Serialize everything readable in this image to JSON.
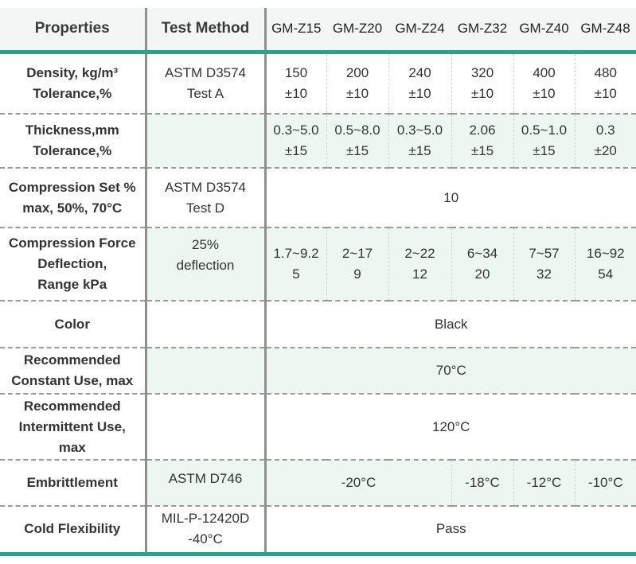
{
  "header": {
    "properties": "Properties",
    "method": "Test Method",
    "models": [
      "GM-Z15",
      "GM-Z20",
      "GM-Z24",
      "GM-Z32",
      "GM-Z40",
      "GM-Z48"
    ]
  },
  "rows": {
    "density": {
      "label_line1": "Density, kg/m³",
      "label_line2": "Tolerance,%",
      "method_line1": "ASTM D3574",
      "method_line2": "Test A",
      "values": [
        {
          "a": "150",
          "b": "±10"
        },
        {
          "a": "200",
          "b": "±10"
        },
        {
          "a": "240",
          "b": "±10"
        },
        {
          "a": "320",
          "b": "±10"
        },
        {
          "a": "400",
          "b": "±10"
        },
        {
          "a": "480",
          "b": "±10"
        }
      ]
    },
    "thickness": {
      "label_line1": "Thickness,mm",
      "label_line2": "Tolerance,%",
      "values": [
        {
          "a": "0.3~5.0",
          "b": "±15"
        },
        {
          "a": "0.5~8.0",
          "b": "±15"
        },
        {
          "a": "0.3~5.0",
          "b": "±15"
        },
        {
          "a": "2.06",
          "b": "±15"
        },
        {
          "a": "0.5~1.0",
          "b": "±15"
        },
        {
          "a": "0.3",
          "b": "±20"
        }
      ]
    },
    "compression_set": {
      "label_line1": "Compression Set %",
      "label_line2": "max,  50%, 70°C",
      "method_line1": "ASTM D3574",
      "method_line2": "Test D",
      "value": "10"
    },
    "cfd": {
      "label_line1": "Compression Force",
      "label_line2": "Deflection,",
      "label_line3": "Range kPa",
      "method_line1": "25%",
      "method_line2": "deflection",
      "values": [
        {
          "a": "1.7~9.2",
          "b": "5"
        },
        {
          "a": "2~17",
          "b": "9"
        },
        {
          "a": "2~22",
          "b": "12"
        },
        {
          "a": "6~34",
          "b": "20"
        },
        {
          "a": "7~57",
          "b": "32"
        },
        {
          "a": "16~92",
          "b": "54"
        }
      ]
    },
    "color": {
      "label": "Color",
      "value": "Black"
    },
    "constant_use": {
      "label_line1": "Recommended",
      "label_line2": "Constant Use, max",
      "value": "70°C"
    },
    "intermittent_use": {
      "label_line1": "Recommended",
      "label_line2": "Intermittent Use,",
      "label_line3": "max",
      "value": "120°C"
    },
    "embrittlement": {
      "label": "Embrittlement",
      "method": "ASTM D746",
      "value_z15_z24": "-20°C",
      "value_z32": "-18°C",
      "value_z40": "-12°C",
      "value_z48": "-10°C"
    },
    "cold_flexibility": {
      "label": "Cold Flexibility",
      "method_line1": "MIL-P-12420D",
      "method_line2": "-40°C",
      "value": "Pass"
    }
  },
  "colors": {
    "accent": "#2aa38b",
    "shade": "#eef6f2",
    "divider": "#8f8f8f"
  }
}
